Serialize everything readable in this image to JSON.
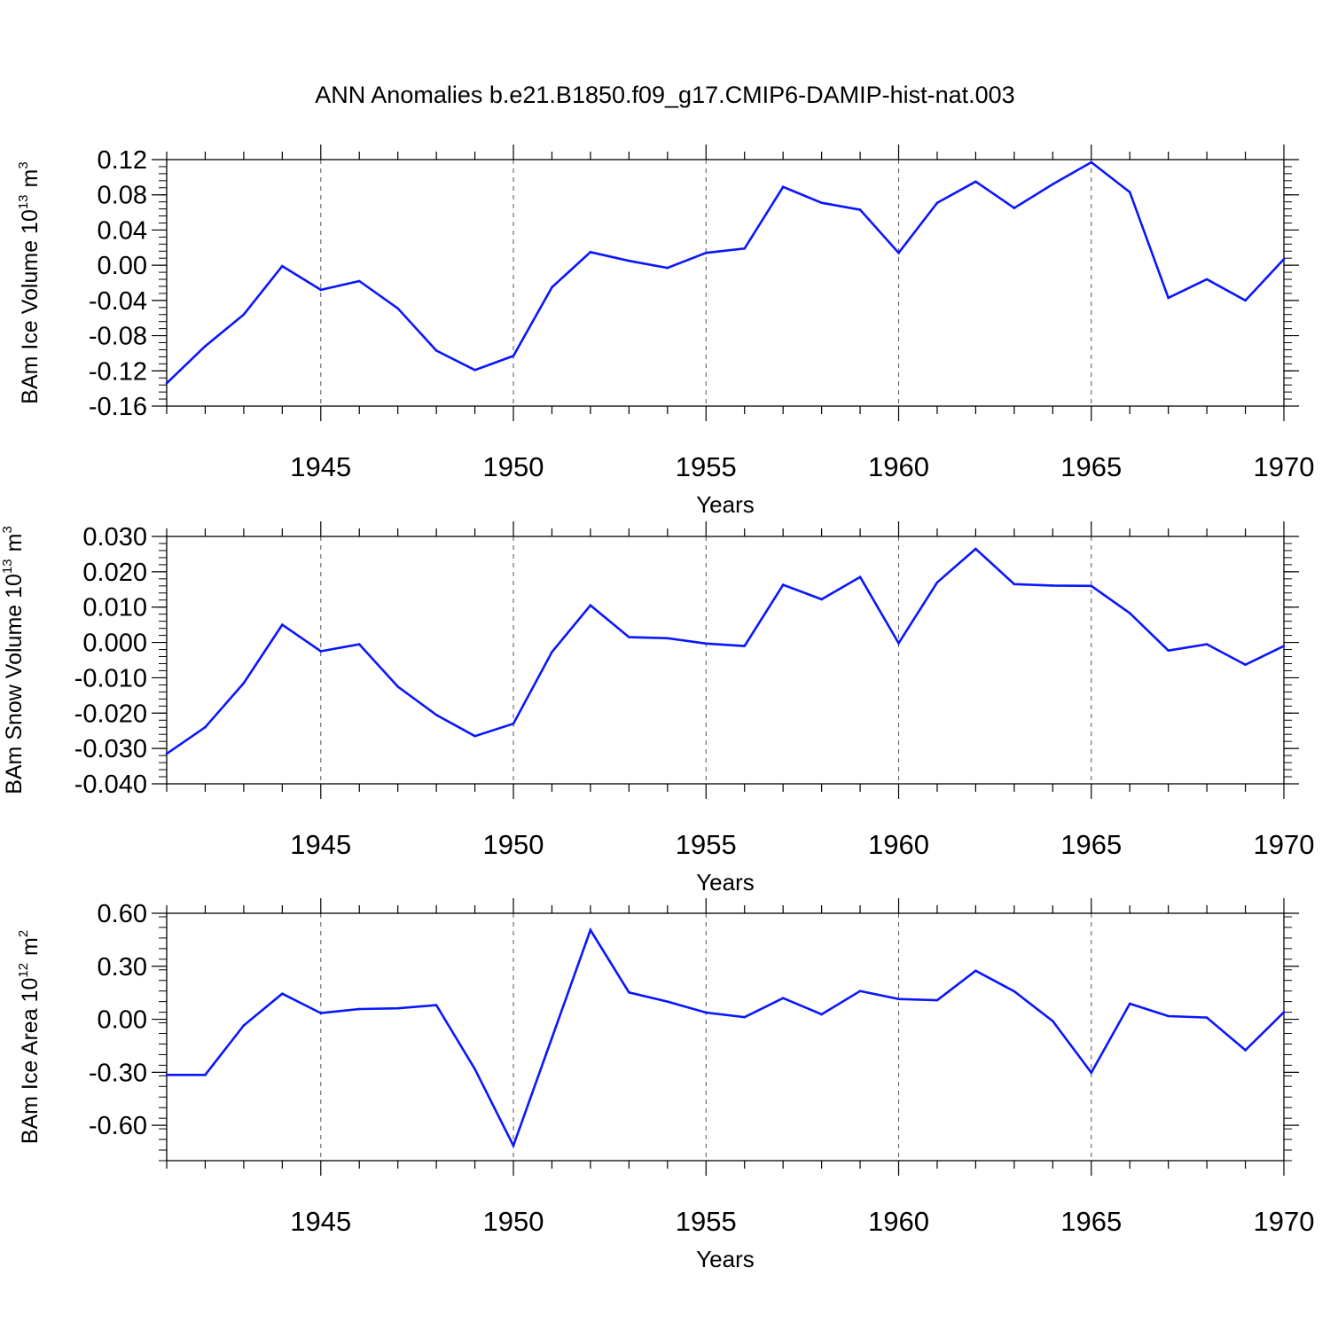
{
  "figure": {
    "title": "ANN Anomalies b.e21.B1850.f09_g17.CMIP6-DAMIP-hist-nat.003"
  },
  "chart_data": [
    {
      "type": "line",
      "title": "",
      "xlabel": "Years",
      "ylabel": "BAm Ice Volume 10",
      "ylabel_exponent": "13",
      "ylabel_unit": "m",
      "ylabel_unit_exponent": "3",
      "xlim": [
        1941,
        1970
      ],
      "ylim": [
        -0.16,
        0.12
      ],
      "xticks": [
        1945,
        1950,
        1955,
        1960,
        1965,
        1970
      ],
      "xtick_labels": [
        "1945",
        "1950",
        "1955",
        "1960",
        "1965",
        "1970"
      ],
      "yticks": [
        0.12,
        0.08,
        0.04,
        0.0,
        -0.04,
        -0.08,
        -0.12,
        -0.16
      ],
      "ytick_labels": [
        "0.12",
        "0.08",
        "0.04",
        "0.00",
        "-0.04",
        "-0.08",
        "-0.12",
        "-0.16"
      ],
      "y_minor_step": 0.008,
      "grid": "vertical dashed at major x ticks",
      "line_color": "#0a16ff",
      "x": [
        1941,
        1942,
        1943,
        1944,
        1945,
        1946,
        1947,
        1948,
        1949,
        1950,
        1951,
        1952,
        1953,
        1954,
        1955,
        1956,
        1957,
        1958,
        1959,
        1960,
        1961,
        1962,
        1963,
        1964,
        1965,
        1966,
        1967,
        1968,
        1969,
        1970
      ],
      "values": [
        -0.134,
        -0.092,
        -0.056,
        -0.001,
        -0.028,
        -0.018,
        -0.049,
        -0.097,
        -0.119,
        -0.103,
        -0.025,
        0.015,
        0.005,
        -0.003,
        0.014,
        0.019,
        0.089,
        0.071,
        0.063,
        0.014,
        0.071,
        0.095,
        0.065,
        0.092,
        0.117,
        0.083,
        -0.037,
        -0.016,
        -0.04,
        0.007
      ]
    },
    {
      "type": "line",
      "title": "",
      "xlabel": "Years",
      "ylabel": "BAm Snow Volume 10",
      "ylabel_exponent": "13",
      "ylabel_unit": "m",
      "ylabel_unit_exponent": "3",
      "xlim": [
        1941,
        1970
      ],
      "ylim": [
        -0.04,
        0.03
      ],
      "xticks": [
        1945,
        1950,
        1955,
        1960,
        1965,
        1970
      ],
      "xtick_labels": [
        "1945",
        "1950",
        "1955",
        "1960",
        "1965",
        "1970"
      ],
      "yticks": [
        0.03,
        0.02,
        0.01,
        0.0,
        -0.01,
        -0.02,
        -0.03,
        -0.04
      ],
      "ytick_labels": [
        "0.030",
        "0.020",
        "0.010",
        "0.000",
        "-0.010",
        "-0.020",
        "-0.030",
        "-0.040"
      ],
      "y_minor_step": 0.002,
      "grid": "vertical dashed at major x ticks",
      "line_color": "#0a16ff",
      "x": [
        1941,
        1942,
        1943,
        1944,
        1945,
        1946,
        1947,
        1948,
        1949,
        1950,
        1951,
        1952,
        1953,
        1954,
        1955,
        1956,
        1957,
        1958,
        1959,
        1960,
        1961,
        1962,
        1963,
        1964,
        1965,
        1966,
        1967,
        1968,
        1969,
        1970
      ],
      "values": [
        -0.0315,
        -0.024,
        -0.0115,
        0.005,
        -0.0025,
        -0.0005,
        -0.0125,
        -0.0205,
        -0.0265,
        -0.023,
        -0.0027,
        0.0105,
        0.0015,
        0.0012,
        -0.0003,
        -0.001,
        0.0163,
        0.0122,
        0.0185,
        -0.0002,
        0.017,
        0.0265,
        0.0165,
        0.0161,
        0.016,
        0.0083,
        -0.0023,
        -0.0005,
        -0.0063,
        -0.001
      ]
    },
    {
      "type": "line",
      "title": "",
      "xlabel": "Years",
      "ylabel": "BAm Ice Area 10",
      "ylabel_exponent": "12",
      "ylabel_unit": "m",
      "ylabel_unit_exponent": "2",
      "xlim": [
        1941,
        1970
      ],
      "ylim": [
        -0.8,
        0.6
      ],
      "xticks": [
        1945,
        1950,
        1955,
        1960,
        1965,
        1970
      ],
      "xtick_labels": [
        "1945",
        "1950",
        "1955",
        "1960",
        "1965",
        "1970"
      ],
      "yticks": [
        0.6,
        0.3,
        0.0,
        -0.3,
        -0.6
      ],
      "ytick_labels": [
        "0.60",
        "0.30",
        "0.00",
        "-0.30",
        "-0.60"
      ],
      "y_minor_step": 0.06,
      "grid": "vertical dashed at major x ticks",
      "line_color": "#0a16ff",
      "x": [
        1941,
        1942,
        1943,
        1944,
        1945,
        1946,
        1947,
        1948,
        1949,
        1950,
        1951,
        1952,
        1953,
        1954,
        1955,
        1956,
        1957,
        1958,
        1959,
        1960,
        1961,
        1962,
        1963,
        1964,
        1965,
        1966,
        1967,
        1968,
        1969,
        1970
      ],
      "values": [
        -0.315,
        -0.315,
        -0.035,
        0.145,
        0.035,
        0.058,
        0.062,
        0.08,
        -0.282,
        -0.715,
        -0.105,
        0.505,
        0.152,
        0.1,
        0.038,
        0.012,
        0.12,
        0.028,
        0.16,
        0.115,
        0.108,
        0.275,
        0.158,
        -0.01,
        -0.302,
        0.088,
        0.018,
        0.01,
        -0.175,
        0.04
      ]
    }
  ]
}
